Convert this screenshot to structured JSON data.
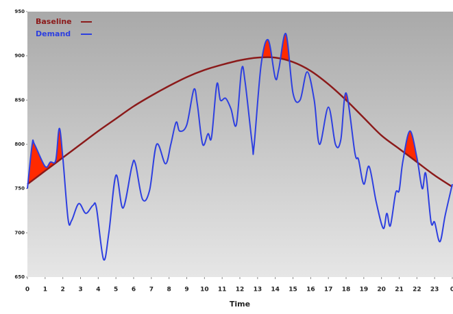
{
  "chart_data": {
    "type": "line",
    "x_label": "Time",
    "xlim": [
      0,
      24
    ],
    "xticks": [
      0,
      1,
      2,
      3,
      4,
      5,
      6,
      7,
      8,
      9,
      10,
      11,
      12,
      13,
      14,
      15,
      16,
      17,
      18,
      19,
      20,
      21,
      22,
      23,
      {
        "value": 24,
        "label": "0"
      }
    ],
    "ylim": [
      650,
      950
    ],
    "yticks": [
      650,
      700,
      750,
      800,
      850,
      900,
      950
    ],
    "legend": "upper left",
    "highlight_color": "#ff2a00",
    "series": [
      {
        "name": "Baseline",
        "color": "#8b1a1a",
        "x": [
          0,
          1,
          2,
          3,
          4,
          5,
          6,
          7,
          8,
          9,
          10,
          11,
          12,
          13,
          14,
          15,
          16,
          17,
          18,
          19,
          20,
          21,
          22,
          23,
          24
        ],
        "values": [
          755,
          770,
          785,
          800,
          815,
          829,
          843,
          855,
          866,
          876,
          884,
          890,
          895,
          898,
          898,
          893,
          883,
          868,
          850,
          830,
          810,
          795,
          780,
          765,
          752
        ]
      },
      {
        "name": "Demand",
        "color": "#2d3fe0",
        "x": [
          0,
          0.27,
          0.4,
          1.0,
          1.3,
          1.6,
          1.8,
          2.0,
          2.3,
          2.5,
          2.9,
          3.3,
          3.7,
          3.9,
          4.3,
          4.6,
          5.0,
          5.4,
          5.9,
          6.1,
          6.5,
          6.9,
          7.3,
          7.8,
          8.1,
          8.4,
          8.6,
          9.0,
          9.4,
          9.6,
          9.9,
          10.2,
          10.4,
          10.7,
          10.9,
          11.2,
          11.5,
          11.8,
          12.1,
          12.3,
          12.7,
          12.8,
          13.2,
          13.6,
          14.0,
          14.2,
          14.6,
          15.0,
          15.4,
          15.8,
          16.2,
          16.5,
          17.0,
          17.4,
          17.7,
          18.0,
          18.5,
          18.7,
          19.0,
          19.3,
          19.7,
          20.1,
          20.3,
          20.5,
          20.8,
          21.0,
          21.2,
          21.6,
          22.0,
          22.3,
          22.5,
          22.8,
          23.0,
          23.3,
          23.6,
          24.0
        ],
        "values": [
          750,
          800,
          800,
          775,
          780,
          782,
          818,
          785,
          715,
          714,
          733,
          722,
          731,
          728,
          670,
          700,
          765,
          728,
          775,
          778,
          738,
          748,
          800,
          778,
          800,
          825,
          815,
          822,
          862,
          845,
          800,
          812,
          808,
          868,
          850,
          852,
          840,
          822,
          885,
          870,
          800,
          798,
          890,
          918,
          875,
          885,
          925,
          858,
          850,
          882,
          850,
          800,
          842,
          800,
          805,
          858,
          790,
          783,
          755,
          775,
          735,
          705,
          722,
          708,
          745,
          748,
          780,
          815,
          785,
          750,
          767,
          712,
          712,
          690,
          720,
          755
        ]
      }
    ]
  }
}
